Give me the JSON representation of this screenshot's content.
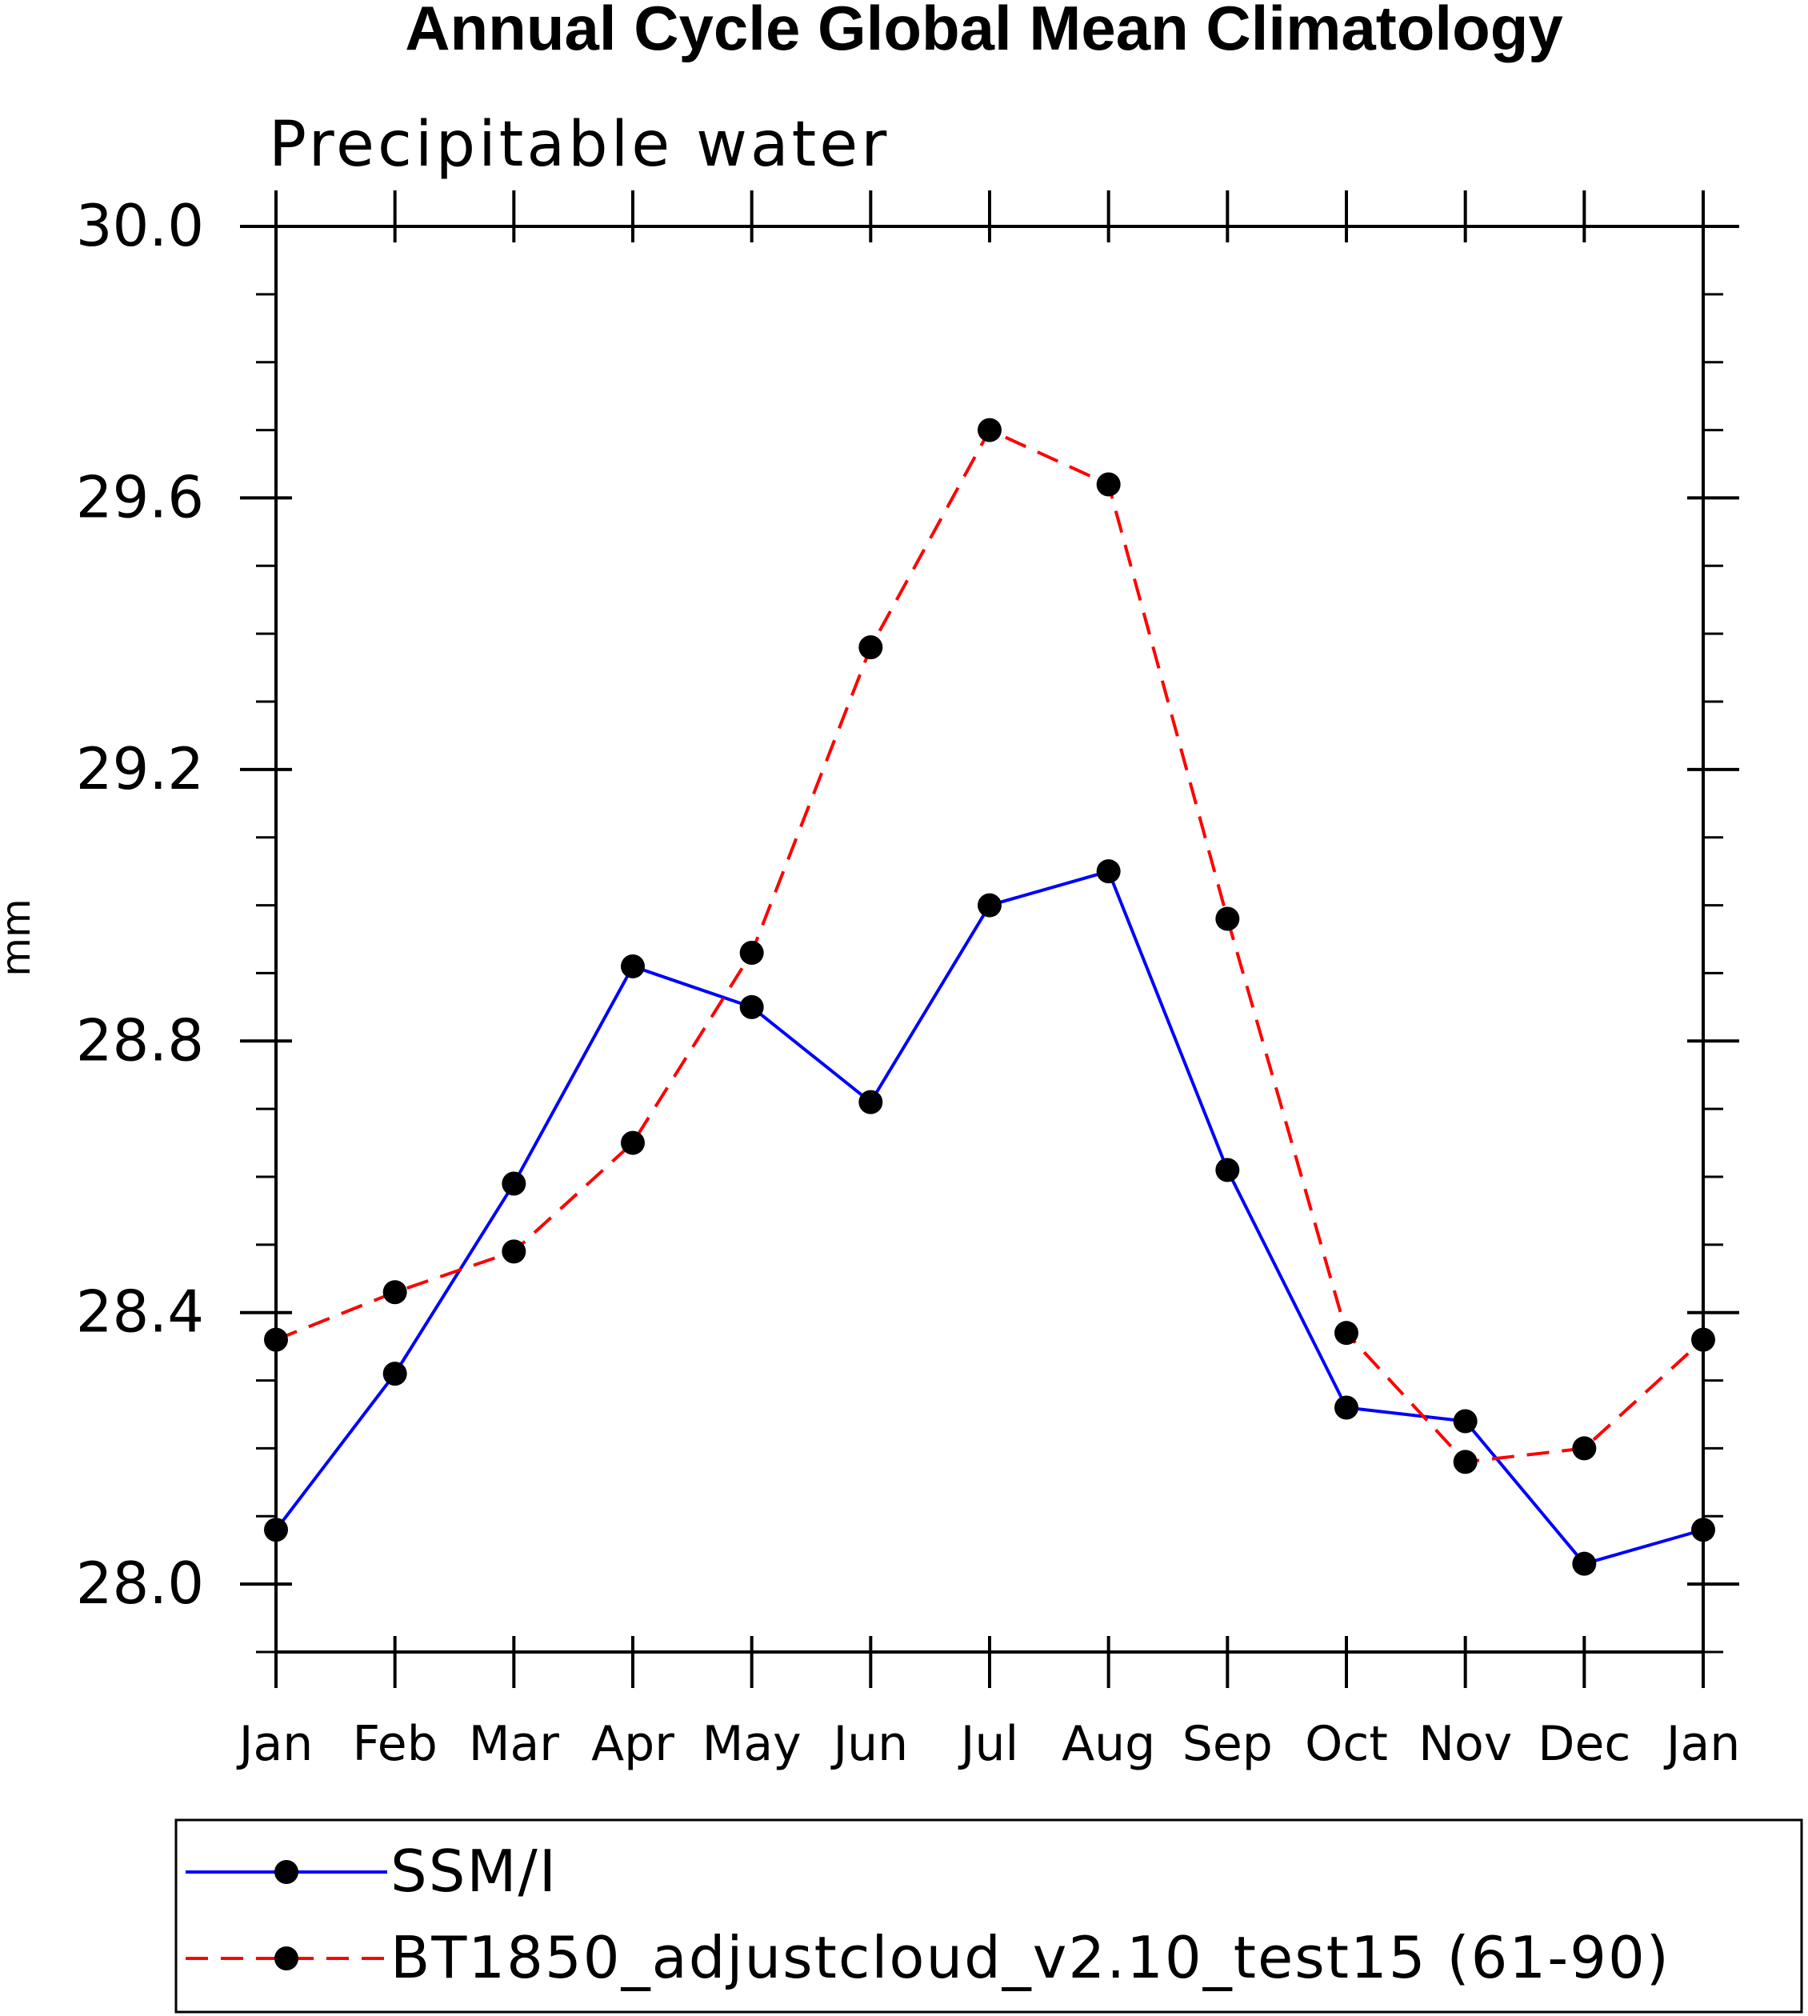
{
  "chart_data": {
    "type": "line",
    "title": "Annual Cycle Global Mean Climatology",
    "subtitle": "Precipitable water",
    "xlabel": "",
    "ylabel": "mm",
    "categories": [
      "Jan",
      "Feb",
      "Mar",
      "Apr",
      "May",
      "Jun",
      "Jul",
      "Aug",
      "Sep",
      "Oct",
      "Nov",
      "Dec",
      "Jan"
    ],
    "ylim": [
      27.9,
      30.0
    ],
    "yticks": [
      28.0,
      28.4,
      28.8,
      29.2,
      29.6,
      30.0
    ],
    "ytick_labels": [
      "28.0",
      "28.4",
      "28.8",
      "29.2",
      "29.6",
      "30.0"
    ],
    "y_minor_step": 0.1,
    "grid": false,
    "legend_position": "bottom",
    "series": [
      {
        "name": "SSM/I",
        "color": "#0000ff",
        "style": "solid",
        "values": [
          28.08,
          28.31,
          28.59,
          28.91,
          28.85,
          28.71,
          29.0,
          29.05,
          28.61,
          28.26,
          28.24,
          28.03,
          28.08
        ]
      },
      {
        "name": "BT1850_adjustcloud_v2.10_test15 (61-90)",
        "color": "#ff0000",
        "style": "dashed",
        "values": [
          28.36,
          28.43,
          28.49,
          28.65,
          28.93,
          29.38,
          29.7,
          29.62,
          28.98,
          28.37,
          28.18,
          28.2,
          28.36
        ]
      }
    ]
  }
}
